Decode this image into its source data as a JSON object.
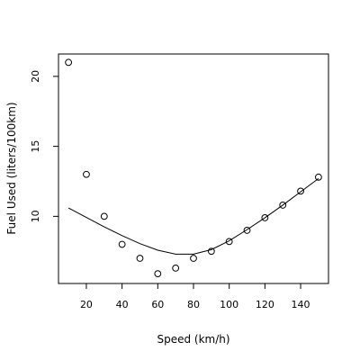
{
  "chart_data": {
    "type": "scatter",
    "title": "",
    "xlabel": "Speed (km/h)",
    "ylabel": "Fuel Used (liters/100km)",
    "xlim": [
      4.4,
      155.6
    ],
    "ylim": [
      5.2,
      21.6
    ],
    "xticks": [
      "20",
      "40",
      "60",
      "80",
      "100",
      "120",
      "140"
    ],
    "yticks": [
      "10",
      "15",
      "20"
    ],
    "grid": false,
    "legend": "none",
    "series": [
      {
        "kind": "points",
        "x": [
          10,
          20,
          30,
          40,
          50,
          60,
          70,
          80,
          90,
          100,
          110,
          120,
          130,
          140,
          150
        ],
        "y": [
          21.0,
          13.0,
          10.0,
          8.0,
          7.0,
          5.9,
          6.3,
          7.0,
          7.5,
          8.2,
          9.0,
          9.9,
          10.8,
          11.8,
          12.8
        ]
      },
      {
        "kind": "fitted-curve",
        "x": [
          10,
          20,
          30,
          40,
          50,
          60,
          70,
          80,
          90,
          100,
          110,
          120,
          130,
          140,
          150
        ],
        "y": [
          10.6,
          9.92,
          9.25,
          8.62,
          8.05,
          7.58,
          7.3,
          7.3,
          7.62,
          8.25,
          9.05,
          9.9,
          10.8,
          11.75,
          12.7
        ]
      }
    ],
    "colors": {
      "ink": "#000000",
      "background": "#ffffff"
    }
  }
}
